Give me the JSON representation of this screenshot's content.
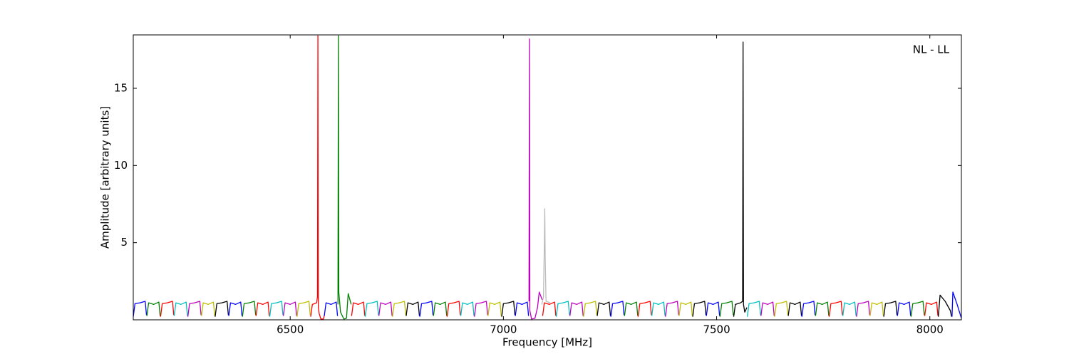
{
  "chart_data": {
    "type": "line",
    "annotation": "NL - LL",
    "xlabel": "Frequency [MHz]",
    "ylabel": "Amplitude [arbitrary units]",
    "xlim": [
      6132,
      8074
    ],
    "ylim": [
      0,
      18.46
    ],
    "xticks": [
      6500,
      7000,
      7500,
      8000
    ],
    "yticks": [
      5,
      10,
      15
    ],
    "series": [
      {
        "color": "#0000ff",
        "x": [
          6132,
          6136,
          6148,
          6160,
          6163
        ],
        "values": [
          0.2,
          1.05,
          1.1,
          1.2,
          0.3
        ]
      },
      {
        "color": "#008000",
        "x": [
          6164,
          6168,
          6180,
          6192,
          6195
        ],
        "values": [
          0.25,
          1.1,
          1.0,
          1.15,
          0.25
        ]
      },
      {
        "color": "#ff0000",
        "x": [
          6196,
          6200,
          6212,
          6224,
          6227
        ],
        "values": [
          0.2,
          1.05,
          1.1,
          1.2,
          0.3
        ]
      },
      {
        "color": "#00bfbf",
        "x": [
          6228,
          6232,
          6244,
          6256,
          6259
        ],
        "values": [
          0.25,
          1.1,
          1.0,
          1.15,
          0.25
        ]
      },
      {
        "color": "#bf00bf",
        "x": [
          6260,
          6264,
          6276,
          6288,
          6291
        ],
        "values": [
          0.2,
          1.05,
          1.1,
          1.2,
          0.3
        ]
      },
      {
        "color": "#bfbf00",
        "x": [
          6292,
          6296,
          6308,
          6320,
          6323
        ],
        "values": [
          0.25,
          1.1,
          1.0,
          1.15,
          0.25
        ]
      },
      {
        "color": "#000000",
        "x": [
          6324,
          6328,
          6340,
          6352,
          6355
        ],
        "values": [
          0.2,
          1.05,
          1.1,
          1.2,
          0.3
        ]
      },
      {
        "color": "#0000ff",
        "x": [
          6356,
          6360,
          6372,
          6384,
          6387
        ],
        "values": [
          0.25,
          1.1,
          1.0,
          1.15,
          0.25
        ]
      },
      {
        "color": "#008000",
        "x": [
          6388,
          6392,
          6404,
          6416,
          6419
        ],
        "values": [
          0.2,
          1.05,
          1.1,
          1.2,
          0.3
        ]
      },
      {
        "color": "#ff0000",
        "x": [
          6420,
          6424,
          6436,
          6448,
          6451
        ],
        "values": [
          0.25,
          1.1,
          1.0,
          1.15,
          0.25
        ]
      },
      {
        "color": "#00bfbf",
        "x": [
          6452,
          6456,
          6468,
          6480,
          6483
        ],
        "values": [
          0.2,
          1.05,
          1.1,
          1.2,
          0.3
        ]
      },
      {
        "color": "#bf00bf",
        "x": [
          6484,
          6488,
          6500,
          6512,
          6515
        ],
        "values": [
          0.25,
          1.1,
          1.0,
          1.15,
          0.25
        ]
      },
      {
        "color": "#bfbf00",
        "x": [
          6516,
          6520,
          6532,
          6544,
          6547
        ],
        "values": [
          0.2,
          1.05,
          1.1,
          1.2,
          0.3
        ]
      },
      {
        "color": "#ff0000",
        "x": [
          6548,
          6552,
          6562,
          6564,
          6565,
          6566,
          6568,
          6572,
          6578,
          6580
        ],
        "values": [
          0.2,
          1.0,
          1.1,
          1.5,
          18.4,
          0.8,
          0.4,
          0.05,
          0.05,
          0.3
        ]
      },
      {
        "color": "#0000ff",
        "x": [
          6580,
          6584,
          6596,
          6608,
          6611
        ],
        "values": [
          0.25,
          1.1,
          1.0,
          1.15,
          0.25
        ]
      },
      {
        "color": "#008000",
        "x": [
          6612,
          6613,
          6614,
          6618,
          6626,
          6632,
          6636,
          6643
        ],
        "values": [
          1.0,
          18.4,
          1.8,
          0.5,
          0.05,
          0.1,
          1.7,
          1.0
        ]
      },
      {
        "color": "#ff0000",
        "x": [
          6644,
          6648,
          6660,
          6672,
          6675
        ],
        "values": [
          0.25,
          1.1,
          1.0,
          1.15,
          0.25
        ]
      },
      {
        "color": "#00bfbf",
        "x": [
          6676,
          6680,
          6692,
          6704,
          6707
        ],
        "values": [
          0.2,
          1.05,
          1.1,
          1.2,
          0.3
        ]
      },
      {
        "color": "#bf00bf",
        "x": [
          6708,
          6712,
          6724,
          6736,
          6739
        ],
        "values": [
          0.25,
          1.1,
          1.0,
          1.15,
          0.25
        ]
      },
      {
        "color": "#bfbf00",
        "x": [
          6740,
          6744,
          6756,
          6768,
          6771
        ],
        "values": [
          0.2,
          1.05,
          1.1,
          1.2,
          0.3
        ]
      },
      {
        "color": "#000000",
        "x": [
          6772,
          6776,
          6788,
          6800,
          6803
        ],
        "values": [
          0.25,
          1.1,
          1.0,
          1.15,
          0.25
        ]
      },
      {
        "color": "#0000ff",
        "x": [
          6804,
          6808,
          6820,
          6832,
          6835
        ],
        "values": [
          0.2,
          1.05,
          1.1,
          1.2,
          0.3
        ]
      },
      {
        "color": "#008000",
        "x": [
          6836,
          6840,
          6852,
          6864,
          6867
        ],
        "values": [
          0.25,
          1.1,
          1.0,
          1.15,
          0.25
        ]
      },
      {
        "color": "#ff0000",
        "x": [
          6868,
          6872,
          6884,
          6896,
          6899
        ],
        "values": [
          0.2,
          1.05,
          1.1,
          1.2,
          0.3
        ]
      },
      {
        "color": "#00bfbf",
        "x": [
          6900,
          6904,
          6916,
          6928,
          6931
        ],
        "values": [
          0.25,
          1.1,
          1.0,
          1.15,
          0.25
        ]
      },
      {
        "color": "#bf00bf",
        "x": [
          6932,
          6936,
          6948,
          6960,
          6963
        ],
        "values": [
          0.2,
          1.05,
          1.1,
          1.2,
          0.3
        ]
      },
      {
        "color": "#bfbf00",
        "x": [
          6964,
          6968,
          6980,
          6992,
          6995
        ],
        "values": [
          0.25,
          1.1,
          1.0,
          1.15,
          0.25
        ]
      },
      {
        "color": "#000000",
        "x": [
          6996,
          7000,
          7012,
          7024,
          7027
        ],
        "values": [
          0.2,
          1.05,
          1.1,
          1.2,
          0.3
        ]
      },
      {
        "color": "#0000ff",
        "x": [
          7028,
          7032,
          7044,
          7056,
          7059
        ],
        "values": [
          0.25,
          1.1,
          1.0,
          1.15,
          0.25
        ]
      },
      {
        "color": "#bf00bf",
        "x": [
          7060,
          7061,
          7062,
          7066,
          7074,
          7080,
          7084,
          7091
        ],
        "values": [
          1.2,
          18.2,
          0.6,
          0.05,
          0.1,
          0.8,
          1.8,
          1.3
        ]
      },
      {
        "color": "#ff0000",
        "x": [
          7092,
          7096,
          7108,
          7120,
          7123
        ],
        "values": [
          0.25,
          1.1,
          1.0,
          1.15,
          0.25
        ]
      },
      {
        "color": "#00bfbf",
        "x": [
          7124,
          7128,
          7140,
          7152,
          7155
        ],
        "values": [
          0.2,
          1.05,
          1.1,
          1.2,
          0.3
        ]
      },
      {
        "color": "#bf00bf",
        "x": [
          7156,
          7160,
          7172,
          7184,
          7187
        ],
        "values": [
          0.25,
          1.1,
          1.0,
          1.15,
          0.25
        ]
      },
      {
        "color": "#bfbf00",
        "x": [
          7188,
          7192,
          7204,
          7216,
          7219
        ],
        "values": [
          0.2,
          1.05,
          1.1,
          1.2,
          0.3
        ]
      },
      {
        "color": "#000000",
        "x": [
          7220,
          7224,
          7236,
          7248,
          7251
        ],
        "values": [
          0.25,
          1.1,
          1.0,
          1.15,
          0.25
        ]
      },
      {
        "color": "#0000ff",
        "x": [
          7252,
          7256,
          7268,
          7280,
          7283
        ],
        "values": [
          0.2,
          1.05,
          1.1,
          1.2,
          0.3
        ]
      },
      {
        "color": "#008000",
        "x": [
          7284,
          7288,
          7300,
          7312,
          7315
        ],
        "values": [
          0.25,
          1.1,
          1.0,
          1.15,
          0.25
        ]
      },
      {
        "color": "#ff0000",
        "x": [
          7316,
          7320,
          7332,
          7344,
          7347
        ],
        "values": [
          0.2,
          1.05,
          1.1,
          1.2,
          0.3
        ]
      },
      {
        "color": "#00bfbf",
        "x": [
          7348,
          7352,
          7364,
          7376,
          7379
        ],
        "values": [
          0.25,
          1.1,
          1.0,
          1.15,
          0.25
        ]
      },
      {
        "color": "#bf00bf",
        "x": [
          7380,
          7384,
          7396,
          7408,
          7411
        ],
        "values": [
          0.2,
          1.05,
          1.1,
          1.2,
          0.3
        ]
      },
      {
        "color": "#bfbf00",
        "x": [
          7412,
          7416,
          7428,
          7440,
          7443
        ],
        "values": [
          0.25,
          1.1,
          1.0,
          1.15,
          0.25
        ]
      },
      {
        "color": "#000000",
        "x": [
          7444,
          7448,
          7460,
          7472,
          7475
        ],
        "values": [
          0.2,
          1.05,
          1.1,
          1.2,
          0.3
        ]
      },
      {
        "color": "#0000ff",
        "x": [
          7476,
          7480,
          7492,
          7504,
          7507
        ],
        "values": [
          0.25,
          1.1,
          1.0,
          1.15,
          0.25
        ]
      },
      {
        "color": "#008000",
        "x": [
          7508,
          7512,
          7524,
          7536,
          7539
        ],
        "values": [
          0.2,
          1.05,
          1.1,
          1.2,
          0.3
        ]
      },
      {
        "color": "#000000",
        "x": [
          7540,
          7544,
          7556,
          7561,
          7562,
          7563,
          7566,
          7571
        ],
        "values": [
          0.2,
          1.0,
          1.1,
          1.2,
          18.0,
          1.0,
          0.5,
          0.8
        ]
      },
      {
        "color": "#00bfbf",
        "x": [
          7572,
          7576,
          7588,
          7600,
          7603
        ],
        "values": [
          0.2,
          1.05,
          1.1,
          1.2,
          0.3
        ]
      },
      {
        "color": "#bf00bf",
        "x": [
          7604,
          7608,
          7620,
          7632,
          7635
        ],
        "values": [
          0.25,
          1.1,
          1.0,
          1.15,
          0.25
        ]
      },
      {
        "color": "#bfbf00",
        "x": [
          7636,
          7640,
          7652,
          7664,
          7667
        ],
        "values": [
          0.2,
          1.05,
          1.1,
          1.2,
          0.3
        ]
      },
      {
        "color": "#000000",
        "x": [
          7668,
          7672,
          7684,
          7696,
          7699
        ],
        "values": [
          0.25,
          1.1,
          1.0,
          1.15,
          0.25
        ]
      },
      {
        "color": "#0000ff",
        "x": [
          7700,
          7704,
          7716,
          7728,
          7731
        ],
        "values": [
          0.2,
          1.05,
          1.1,
          1.2,
          0.3
        ]
      },
      {
        "color": "#008000",
        "x": [
          7732,
          7736,
          7748,
          7760,
          7763
        ],
        "values": [
          0.25,
          1.1,
          1.0,
          1.15,
          0.25
        ]
      },
      {
        "color": "#ff0000",
        "x": [
          7764,
          7768,
          7780,
          7792,
          7795
        ],
        "values": [
          0.2,
          1.05,
          1.1,
          1.2,
          0.3
        ]
      },
      {
        "color": "#00bfbf",
        "x": [
          7796,
          7800,
          7812,
          7824,
          7827
        ],
        "values": [
          0.25,
          1.1,
          1.0,
          1.15,
          0.25
        ]
      },
      {
        "color": "#bf00bf",
        "x": [
          7828,
          7832,
          7844,
          7856,
          7859
        ],
        "values": [
          0.2,
          1.05,
          1.1,
          1.2,
          0.3
        ]
      },
      {
        "color": "#bfbf00",
        "x": [
          7860,
          7864,
          7876,
          7888,
          7891
        ],
        "values": [
          0.25,
          1.1,
          1.0,
          1.15,
          0.25
        ]
      },
      {
        "color": "#000000",
        "x": [
          7892,
          7896,
          7908,
          7920,
          7923
        ],
        "values": [
          0.2,
          1.05,
          1.1,
          1.2,
          0.3
        ]
      },
      {
        "color": "#0000ff",
        "x": [
          7924,
          7928,
          7940,
          7952,
          7955
        ],
        "values": [
          0.25,
          1.1,
          1.0,
          1.15,
          0.25
        ]
      },
      {
        "color": "#008000",
        "x": [
          7956,
          7960,
          7972,
          7984,
          7987
        ],
        "values": [
          0.2,
          1.05,
          1.1,
          1.2,
          0.3
        ]
      },
      {
        "color": "#ff0000",
        "x": [
          7988,
          7992,
          8004,
          8016,
          8019
        ],
        "values": [
          0.25,
          1.1,
          1.0,
          1.15,
          0.25
        ]
      },
      {
        "color": "#000000",
        "x": [
          8020,
          8024,
          8036,
          8048,
          8051
        ],
        "values": [
          0.2,
          1.6,
          1.2,
          0.6,
          0.2
        ]
      },
      {
        "color": "#0000ff",
        "x": [
          8052,
          8054,
          8064,
          8074
        ],
        "values": [
          0.2,
          1.8,
          1.0,
          0.1
        ]
      },
      {
        "color": "#bbbbbb",
        "x": [
          7090,
          7094,
          7096,
          7097,
          7098,
          7100,
          7110
        ],
        "values": [
          1.0,
          1.5,
          5,
          7.2,
          4,
          1.2,
          1.1
        ]
      }
    ]
  }
}
